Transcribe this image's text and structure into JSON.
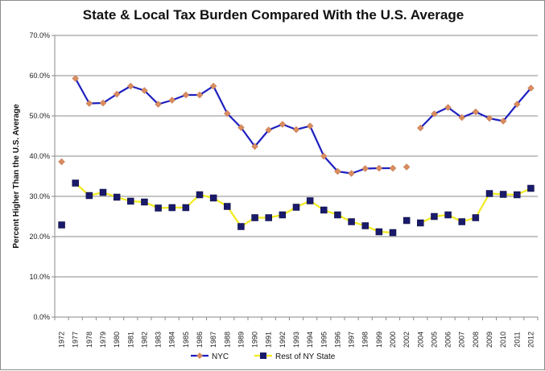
{
  "chart_data": {
    "type": "line",
    "title": "State & Local Tax Burden Compared With the U.S. Average",
    "xlabel": "",
    "ylabel": "Percent Higher Than the U.S. Average",
    "ylim": [
      0,
      70
    ],
    "ytick_step": 10,
    "ytick_labels": [
      "0.0%",
      "10.0%",
      "20.0%",
      "30.0%",
      "40.0%",
      "50.0%",
      "60.0%",
      "70.0%"
    ],
    "grid": true,
    "legend_position": "bottom",
    "categories": [
      "1972",
      "1977",
      "1978",
      "1979",
      "1980",
      "1981",
      "1982",
      "1983",
      "1984",
      "1985",
      "1986",
      "1987",
      "1988",
      "1989",
      "1990",
      "1991",
      "1992",
      "1993",
      "1994",
      "1995",
      "1996",
      "1997",
      "1998",
      "1999",
      "2000",
      "2002",
      "2004",
      "2005",
      "2006",
      "2007",
      "2008",
      "2009",
      "2010",
      "2011",
      "2012"
    ],
    "series": [
      {
        "name": "NYC",
        "line_color": "#1f1fbf",
        "marker_color": "#d98c5f",
        "marker": "diamond",
        "values": [
          38.6,
          59.3,
          53.1,
          53.2,
          55.4,
          57.4,
          56.3,
          52.9,
          53.9,
          55.2,
          55.2,
          57.4,
          50.6,
          47.1,
          42.4,
          46.5,
          47.9,
          46.6,
          47.5,
          40.0,
          36.2,
          35.7,
          36.9,
          37.0,
          37.0,
          37.3,
          47.0,
          50.5,
          52.1,
          49.6,
          51.0,
          49.4,
          48.7,
          52.9,
          56.9
        ]
      },
      {
        "name": "Rest of NY State",
        "line_color": "#f2ea1f",
        "marker_color": "#1a1a6b",
        "marker": "square",
        "values": [
          22.9,
          33.3,
          30.2,
          31.0,
          29.8,
          28.8,
          28.6,
          27.1,
          27.2,
          27.2,
          30.4,
          29.6,
          27.5,
          22.5,
          24.7,
          24.7,
          25.4,
          27.3,
          28.9,
          26.6,
          25.4,
          23.7,
          22.7,
          21.2,
          21.0,
          24.0,
          23.4,
          25.0,
          25.4,
          23.7,
          24.7,
          30.7,
          30.5,
          30.4,
          32.0
        ]
      }
    ]
  }
}
